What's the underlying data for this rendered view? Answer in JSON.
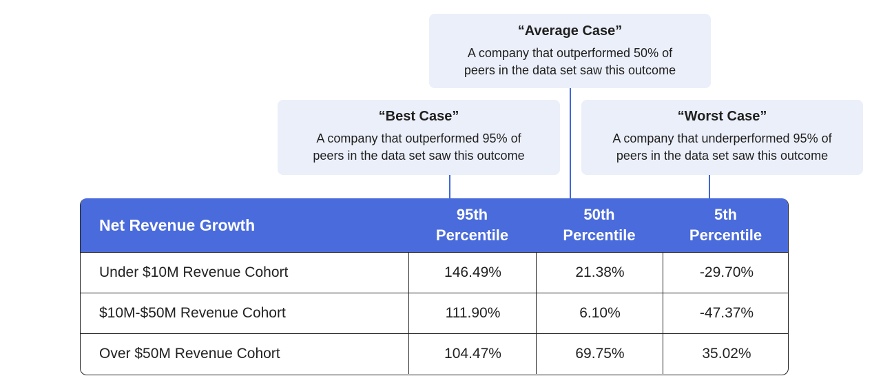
{
  "callouts": {
    "average": {
      "title": "“Average Case”",
      "line1": "A company that outperformed 50% of",
      "line2": "peers in the data set saw this outcome"
    },
    "best": {
      "title": "“Best Case”",
      "line1": "A company that outperformed 95% of",
      "line2": "peers in the data set saw this outcome"
    },
    "worst": {
      "title": "“Worst Case”",
      "line1": "A company that underperformed 95% of",
      "line2": "peers in the data set saw this outcome"
    }
  },
  "colors": {
    "header_bg": "#4a6bdc",
    "callout_bg": "#ebeff9",
    "connector": "#3f67d8"
  },
  "chart_data": {
    "type": "table",
    "columns": [
      {
        "line1": "Net Revenue Growth"
      },
      {
        "line1": "95th",
        "line2": "Percentile"
      },
      {
        "line1": "50th",
        "line2": "Percentile"
      },
      {
        "line1": "5th",
        "line2": "Percentile"
      }
    ],
    "rows": [
      {
        "label": "Under $10M Revenue Cohort",
        "p95": "146.49%",
        "p50": "21.38%",
        "p5": "-29.70%"
      },
      {
        "label": "$10M-$50M Revenue Cohort",
        "p95": "111.90%",
        "p50": "6.10%",
        "p5": "-47.37%"
      },
      {
        "label": "Over $50M Revenue Cohort",
        "p95": "104.47%",
        "p50": "69.75%",
        "p5": "35.02%"
      }
    ]
  }
}
